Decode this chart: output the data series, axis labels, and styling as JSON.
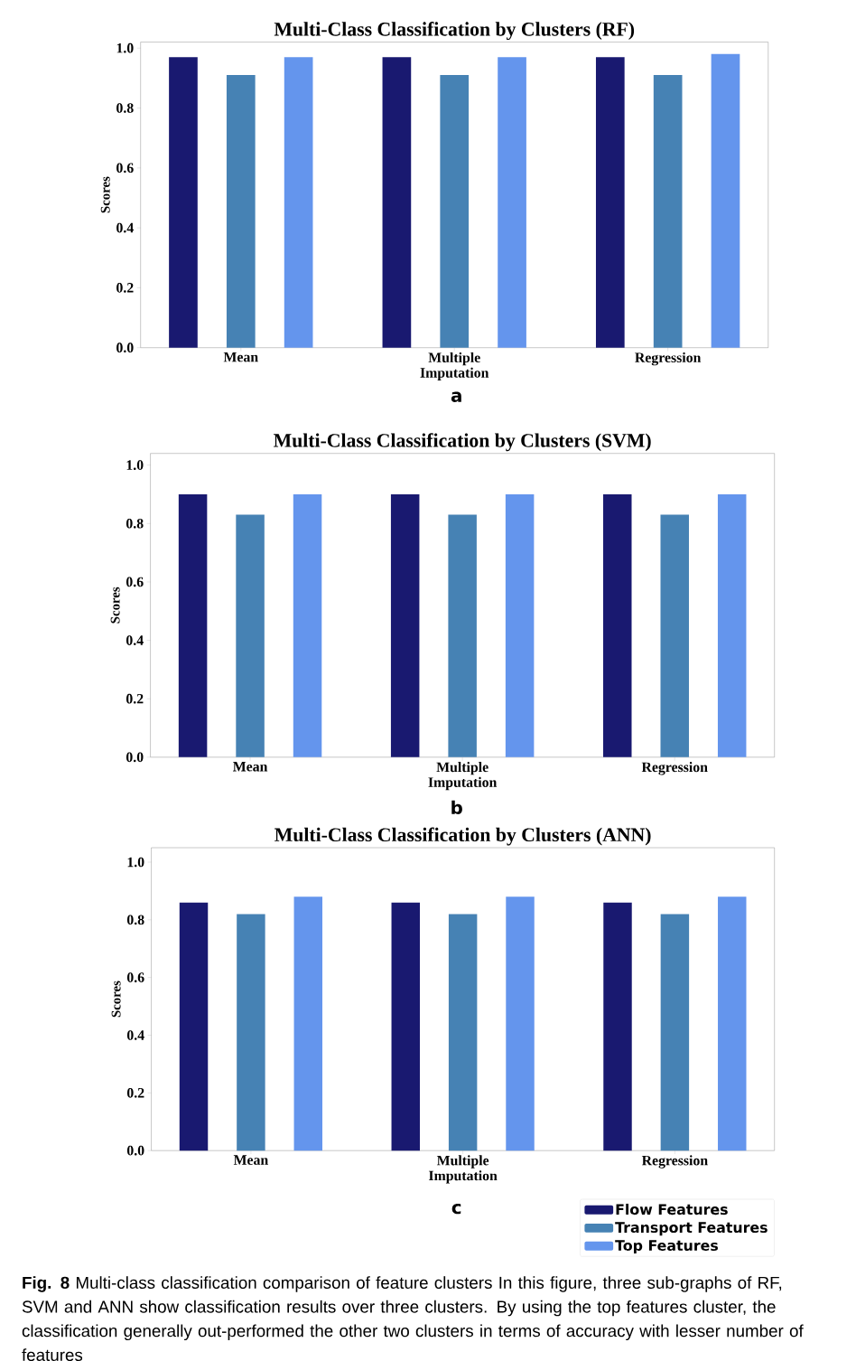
{
  "chart_data": [
    {
      "type": "bar",
      "title": "Multi-Class Classification by Clusters (RF)",
      "ylabel": "Scores",
      "categories": [
        "Mean",
        "Multiple Imputation",
        "Regression"
      ],
      "series": [
        {
          "color": "#191970",
          "values": [
            0.97,
            0.97,
            0.97
          ]
        },
        {
          "color": "#4682b4",
          "values": [
            0.91,
            0.91,
            0.91
          ]
        },
        {
          "color": "#6495ed",
          "values": [
            0.97,
            0.97,
            0.98
          ]
        }
      ],
      "ylim": [
        0,
        1.02
      ],
      "yticks": [
        {
          "value": 0,
          "label": "0.0"
        },
        {
          "value": 0.2,
          "label": "0.2"
        },
        {
          "value": 0.4,
          "label": "0.4"
        },
        {
          "value": 0.6,
          "label": "0.6"
        },
        {
          "value": 0.8,
          "label": "0.8"
        },
        {
          "value": 1,
          "label": "1.0"
        }
      ],
      "grid": false,
      "legend": false,
      "annotations": [
        "a"
      ]
    },
    {
      "type": "bar",
      "title": "Multi-Class Classification by Clusters (SVM)",
      "ylabel": "Scores",
      "categories": [
        "Mean",
        "Multiple Imputation",
        "Regression"
      ],
      "series": [
        {
          "color": "#191970",
          "values": [
            0.9,
            0.9,
            0.9
          ]
        },
        {
          "color": "#4682b4",
          "values": [
            0.83,
            0.83,
            0.83
          ]
        },
        {
          "color": "#6495ed",
          "values": [
            0.9,
            0.9,
            0.9
          ]
        }
      ],
      "ylim": [
        0,
        1.04
      ],
      "yticks": [
        {
          "value": 0,
          "label": "0.0"
        },
        {
          "value": 0.2,
          "label": "0.2"
        },
        {
          "value": 0.4,
          "label": "0.4"
        },
        {
          "value": 0.6,
          "label": "0.6"
        },
        {
          "value": 0.8,
          "label": "0.8"
        },
        {
          "value": 1,
          "label": "1.0"
        }
      ],
      "grid": false,
      "legend": false,
      "annotations": [
        "b"
      ]
    },
    {
      "type": "bar",
      "title": "Multi-Class Classification by Clusters (ANN)",
      "ylabel": "Scores",
      "categories": [
        "Mean",
        "Multiple Imputation",
        "Regression"
      ],
      "series": [
        {
          "name": "Flow Features",
          "color": "#191970",
          "values": [
            0.86,
            0.86,
            0.86
          ]
        },
        {
          "name": "Transport Features",
          "color": "#4682b4",
          "values": [
            0.82,
            0.82,
            0.82
          ]
        },
        {
          "name": "Top Features",
          "color": "#6495ed",
          "values": [
            0.88,
            0.88,
            0.88
          ]
        }
      ],
      "ylim": [
        0,
        1.05
      ],
      "yticks": [
        {
          "value": 0,
          "label": "0.0"
        },
        {
          "value": 0.2,
          "label": "0.2"
        },
        {
          "value": 0.4,
          "label": "0.4"
        },
        {
          "value": 0.6,
          "label": "0.6"
        },
        {
          "value": 0.8,
          "label": "0.8"
        },
        {
          "value": 1,
          "label": "1.0"
        }
      ],
      "grid": false,
      "legend": "bottom right",
      "annotations": [
        "c",
        "**Fig. 8** Multi-class classification comparison of feature clusters In this figure, three sub-graphs of RF, SVM and ANN show classification results over three clusters. By using the top features cluster, the classification generally out-performed the other two clusters in terms of accuracy with lesser number of features"
      ]
    }
  ]
}
